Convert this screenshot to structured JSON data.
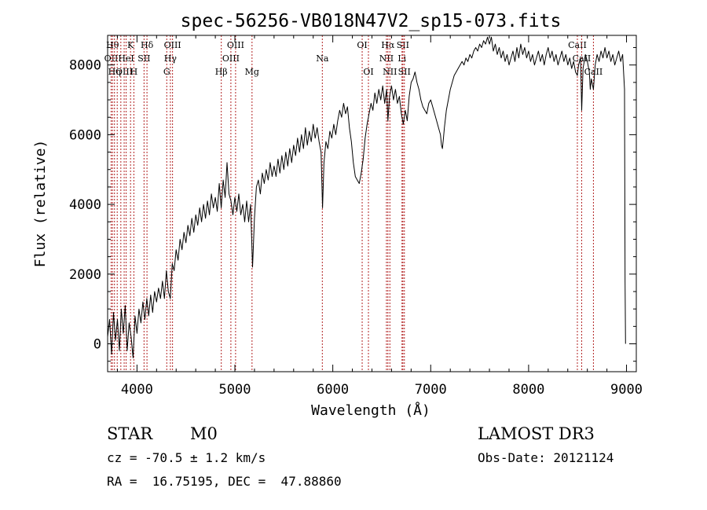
{
  "chart_data": {
    "type": "line",
    "title": "spec-56256-VB018N47V2_sp15-073.fits",
    "xlabel": "Wavelength (Å)",
    "ylabel": "Flux (relative)",
    "xlim": [
      3700,
      9100
    ],
    "ylim": [
      -800,
      8850
    ],
    "xticks": [
      4000,
      5000,
      6000,
      7000,
      8000,
      9000
    ],
    "yticks": [
      0,
      2000,
      4000,
      6000,
      8000
    ],
    "grid": false,
    "legend": "none",
    "line_color": "#000000",
    "marker_color": "#b22222",
    "series": [
      {
        "points": [
          [
            3700,
            200
          ],
          [
            3720,
            700
          ],
          [
            3740,
            -300
          ],
          [
            3760,
            900
          ],
          [
            3780,
            100
          ],
          [
            3800,
            700
          ],
          [
            3820,
            -200
          ],
          [
            3840,
            1000
          ],
          [
            3860,
            300
          ],
          [
            3880,
            1100
          ],
          [
            3900,
            -200
          ],
          [
            3920,
            600
          ],
          [
            3940,
            200
          ],
          [
            3960,
            -400
          ],
          [
            3980,
            800
          ],
          [
            4000,
            300
          ],
          [
            4020,
            1000
          ],
          [
            4040,
            600
          ],
          [
            4060,
            1200
          ],
          [
            4080,
            700
          ],
          [
            4100,
            1300
          ],
          [
            4120,
            800
          ],
          [
            4140,
            1400
          ],
          [
            4160,
            900
          ],
          [
            4180,
            1500
          ],
          [
            4200,
            1200
          ],
          [
            4220,
            1600
          ],
          [
            4240,
            1300
          ],
          [
            4260,
            1800
          ],
          [
            4280,
            1300
          ],
          [
            4300,
            2100
          ],
          [
            4320,
            1500
          ],
          [
            4340,
            1300
          ],
          [
            4360,
            2300
          ],
          [
            4380,
            2100
          ],
          [
            4400,
            2700
          ],
          [
            4420,
            2400
          ],
          [
            4440,
            3000
          ],
          [
            4460,
            2700
          ],
          [
            4480,
            3200
          ],
          [
            4500,
            2900
          ],
          [
            4520,
            3400
          ],
          [
            4540,
            3100
          ],
          [
            4560,
            3600
          ],
          [
            4580,
            3200
          ],
          [
            4600,
            3700
          ],
          [
            4620,
            3400
          ],
          [
            4640,
            3900
          ],
          [
            4660,
            3500
          ],
          [
            4680,
            4000
          ],
          [
            4700,
            3600
          ],
          [
            4720,
            4100
          ],
          [
            4740,
            3700
          ],
          [
            4760,
            4300
          ],
          [
            4780,
            3900
          ],
          [
            4800,
            4200
          ],
          [
            4820,
            3800
          ],
          [
            4840,
            4600
          ],
          [
            4860,
            3900
          ],
          [
            4880,
            4700
          ],
          [
            4900,
            4200
          ],
          [
            4920,
            5200
          ],
          [
            4940,
            4300
          ],
          [
            4960,
            4100
          ],
          [
            4980,
            3700
          ],
          [
            5000,
            4200
          ],
          [
            5020,
            3800
          ],
          [
            5040,
            4300
          ],
          [
            5060,
            3700
          ],
          [
            5080,
            4000
          ],
          [
            5100,
            3500
          ],
          [
            5120,
            4100
          ],
          [
            5140,
            3500
          ],
          [
            5160,
            4000
          ],
          [
            5180,
            2200
          ],
          [
            5200,
            3600
          ],
          [
            5220,
            4500
          ],
          [
            5240,
            4700
          ],
          [
            5260,
            4300
          ],
          [
            5280,
            4900
          ],
          [
            5300,
            4600
          ],
          [
            5320,
            5000
          ],
          [
            5340,
            4700
          ],
          [
            5360,
            5200
          ],
          [
            5380,
            4800
          ],
          [
            5400,
            5100
          ],
          [
            5420,
            4800
          ],
          [
            5440,
            5300
          ],
          [
            5460,
            4900
          ],
          [
            5480,
            5400
          ],
          [
            5500,
            5000
          ],
          [
            5520,
            5500
          ],
          [
            5540,
            5100
          ],
          [
            5560,
            5600
          ],
          [
            5580,
            5200
          ],
          [
            5600,
            5700
          ],
          [
            5620,
            5400
          ],
          [
            5640,
            5900
          ],
          [
            5660,
            5500
          ],
          [
            5680,
            6000
          ],
          [
            5700,
            5600
          ],
          [
            5720,
            6200
          ],
          [
            5740,
            5700
          ],
          [
            5760,
            6100
          ],
          [
            5780,
            5800
          ],
          [
            5800,
            6300
          ],
          [
            5820,
            5900
          ],
          [
            5840,
            6200
          ],
          [
            5860,
            5800
          ],
          [
            5880,
            5500
          ],
          [
            5895,
            3900
          ],
          [
            5910,
            5200
          ],
          [
            5930,
            5800
          ],
          [
            5950,
            5600
          ],
          [
            5970,
            6100
          ],
          [
            5990,
            5900
          ],
          [
            6010,
            6300
          ],
          [
            6030,
            6000
          ],
          [
            6050,
            6400
          ],
          [
            6070,
            6700
          ],
          [
            6090,
            6500
          ],
          [
            6110,
            6900
          ],
          [
            6130,
            6600
          ],
          [
            6150,
            6800
          ],
          [
            6170,
            6200
          ],
          [
            6190,
            5800
          ],
          [
            6210,
            5200
          ],
          [
            6230,
            4800
          ],
          [
            6250,
            4700
          ],
          [
            6270,
            4600
          ],
          [
            6290,
            4900
          ],
          [
            6310,
            5300
          ],
          [
            6330,
            5900
          ],
          [
            6350,
            6300
          ],
          [
            6370,
            6600
          ],
          [
            6390,
            6900
          ],
          [
            6410,
            6700
          ],
          [
            6430,
            7200
          ],
          [
            6450,
            6900
          ],
          [
            6470,
            7300
          ],
          [
            6490,
            7000
          ],
          [
            6510,
            7400
          ],
          [
            6530,
            6900
          ],
          [
            6550,
            7300
          ],
          [
            6563,
            6400
          ],
          [
            6580,
            7100
          ],
          [
            6600,
            7400
          ],
          [
            6620,
            7000
          ],
          [
            6640,
            7300
          ],
          [
            6660,
            6900
          ],
          [
            6680,
            7100
          ],
          [
            6700,
            6600
          ],
          [
            6720,
            6300
          ],
          [
            6740,
            6700
          ],
          [
            6760,
            6400
          ],
          [
            6780,
            7100
          ],
          [
            6800,
            7500
          ],
          [
            6820,
            7600
          ],
          [
            6840,
            7800
          ],
          [
            6860,
            7500
          ],
          [
            6880,
            7300
          ],
          [
            6900,
            7000
          ],
          [
            6920,
            6800
          ],
          [
            6940,
            6700
          ],
          [
            6960,
            6600
          ],
          [
            6980,
            6900
          ],
          [
            7000,
            7000
          ],
          [
            7020,
            6800
          ],
          [
            7040,
            6600
          ],
          [
            7060,
            6400
          ],
          [
            7080,
            6200
          ],
          [
            7100,
            6000
          ],
          [
            7110,
            5700
          ],
          [
            7120,
            5600
          ],
          [
            7130,
            5900
          ],
          [
            7140,
            6200
          ],
          [
            7160,
            6700
          ],
          [
            7180,
            7000
          ],
          [
            7200,
            7300
          ],
          [
            7220,
            7500
          ],
          [
            7240,
            7700
          ],
          [
            7260,
            7800
          ],
          [
            7280,
            7900
          ],
          [
            7300,
            8000
          ],
          [
            7320,
            8100
          ],
          [
            7340,
            8000
          ],
          [
            7360,
            8200
          ],
          [
            7380,
            8100
          ],
          [
            7400,
            8300
          ],
          [
            7420,
            8200
          ],
          [
            7440,
            8400
          ],
          [
            7460,
            8500
          ],
          [
            7480,
            8400
          ],
          [
            7500,
            8600
          ],
          [
            7520,
            8500
          ],
          [
            7540,
            8700
          ],
          [
            7560,
            8600
          ],
          [
            7580,
            8800
          ],
          [
            7600,
            8600
          ],
          [
            7620,
            8800
          ],
          [
            7640,
            8400
          ],
          [
            7660,
            8600
          ],
          [
            7680,
            8300
          ],
          [
            7700,
            8500
          ],
          [
            7720,
            8200
          ],
          [
            7740,
            8400
          ],
          [
            7760,
            8100
          ],
          [
            7780,
            8300
          ],
          [
            7800,
            8000
          ],
          [
            7820,
            8200
          ],
          [
            7840,
            8400
          ],
          [
            7860,
            8100
          ],
          [
            7880,
            8500
          ],
          [
            7900,
            8200
          ],
          [
            7920,
            8600
          ],
          [
            7940,
            8300
          ],
          [
            7960,
            8500
          ],
          [
            7980,
            8200
          ],
          [
            8000,
            8400
          ],
          [
            8020,
            8100
          ],
          [
            8040,
            8300
          ],
          [
            8060,
            8000
          ],
          [
            8080,
            8200
          ],
          [
            8100,
            8400
          ],
          [
            8120,
            8100
          ],
          [
            8140,
            8300
          ],
          [
            8160,
            8000
          ],
          [
            8180,
            8300
          ],
          [
            8200,
            8500
          ],
          [
            8220,
            8200
          ],
          [
            8240,
            8400
          ],
          [
            8260,
            8100
          ],
          [
            8280,
            8300
          ],
          [
            8300,
            8000
          ],
          [
            8320,
            8200
          ],
          [
            8340,
            8400
          ],
          [
            8360,
            8100
          ],
          [
            8380,
            8300
          ],
          [
            8400,
            8000
          ],
          [
            8420,
            8200
          ],
          [
            8440,
            7900
          ],
          [
            8460,
            8100
          ],
          [
            8480,
            7800
          ],
          [
            8498,
            7700
          ],
          [
            8510,
            8000
          ],
          [
            8530,
            8200
          ],
          [
            8542,
            6700
          ],
          [
            8556,
            7900
          ],
          [
            8580,
            8300
          ],
          [
            8600,
            8100
          ],
          [
            8620,
            7800
          ],
          [
            8630,
            7300
          ],
          [
            8640,
            7600
          ],
          [
            8662,
            7300
          ],
          [
            8680,
            8000
          ],
          [
            8700,
            8300
          ],
          [
            8720,
            8100
          ],
          [
            8740,
            8400
          ],
          [
            8760,
            8200
          ],
          [
            8780,
            8500
          ],
          [
            8800,
            8200
          ],
          [
            8820,
            8400
          ],
          [
            8840,
            8100
          ],
          [
            8860,
            8300
          ],
          [
            8880,
            8000
          ],
          [
            8900,
            8200
          ],
          [
            8920,
            8400
          ],
          [
            8940,
            8100
          ],
          [
            8960,
            8300
          ],
          [
            8980,
            7300
          ],
          [
            8985,
            1800
          ],
          [
            8990,
            0
          ]
        ]
      }
    ],
    "lines": [
      {
        "x": 3736,
        "label": "OII",
        "row": 1
      },
      {
        "x": 3750,
        "label": "Hθ",
        "row": 0
      },
      {
        "x": 3770,
        "label": "Hη",
        "row": 2
      },
      {
        "x": 3798,
        "label": "",
        "row": -1
      },
      {
        "x": 3835,
        "label": "",
        "row": -1
      },
      {
        "x": 3869,
        "label": "OIII",
        "row": 2
      },
      {
        "x": 3889,
        "label": "HeI",
        "row": 1
      },
      {
        "x": 3934,
        "label": "K",
        "row": 0
      },
      {
        "x": 3968,
        "label": "H",
        "row": 2
      },
      {
        "x": 4072,
        "label": "SII",
        "row": 1
      },
      {
        "x": 4102,
        "label": "Hδ",
        "row": 0
      },
      {
        "x": 4304,
        "label": "G",
        "row": 2
      },
      {
        "x": 4341,
        "label": "Hγ",
        "row": 1
      },
      {
        "x": 4363,
        "label": "OIII",
        "row": 0
      },
      {
        "x": 4861,
        "label": "Hβ",
        "row": 2
      },
      {
        "x": 4959,
        "label": "OIII",
        "row": 1
      },
      {
        "x": 5007,
        "label": "OIII",
        "row": 0
      },
      {
        "x": 5175,
        "label": "Mg",
        "row": 2
      },
      {
        "x": 5893,
        "label": "Na",
        "row": 1
      },
      {
        "x": 6300,
        "label": "OI",
        "row": 0
      },
      {
        "x": 6364,
        "label": "OI",
        "row": 2
      },
      {
        "x": 6548,
        "label": "NII",
        "row": 1
      },
      {
        "x": 6563,
        "label": "Hα",
        "row": 0
      },
      {
        "x": 6583,
        "label": "NII",
        "row": 2
      },
      {
        "x": 6707,
        "label": "Li",
        "row": 1
      },
      {
        "x": 6716,
        "label": "SII",
        "row": 0
      },
      {
        "x": 6731,
        "label": "SII",
        "row": 2
      },
      {
        "x": 8498,
        "label": "CaII",
        "row": 0
      },
      {
        "x": 8542,
        "label": "CaII",
        "row": 1
      },
      {
        "x": 8662,
        "label": "CaII",
        "row": 2
      }
    ]
  },
  "info": {
    "class": "STAR",
    "subclass": "M0",
    "survey": "LAMOST DR3",
    "cz": "cz = -70.5 ± 1.2 km/s",
    "obs_date": "Obs-Date: 20121124",
    "coords": "RA =  16.75195, DEC =  47.88860"
  }
}
